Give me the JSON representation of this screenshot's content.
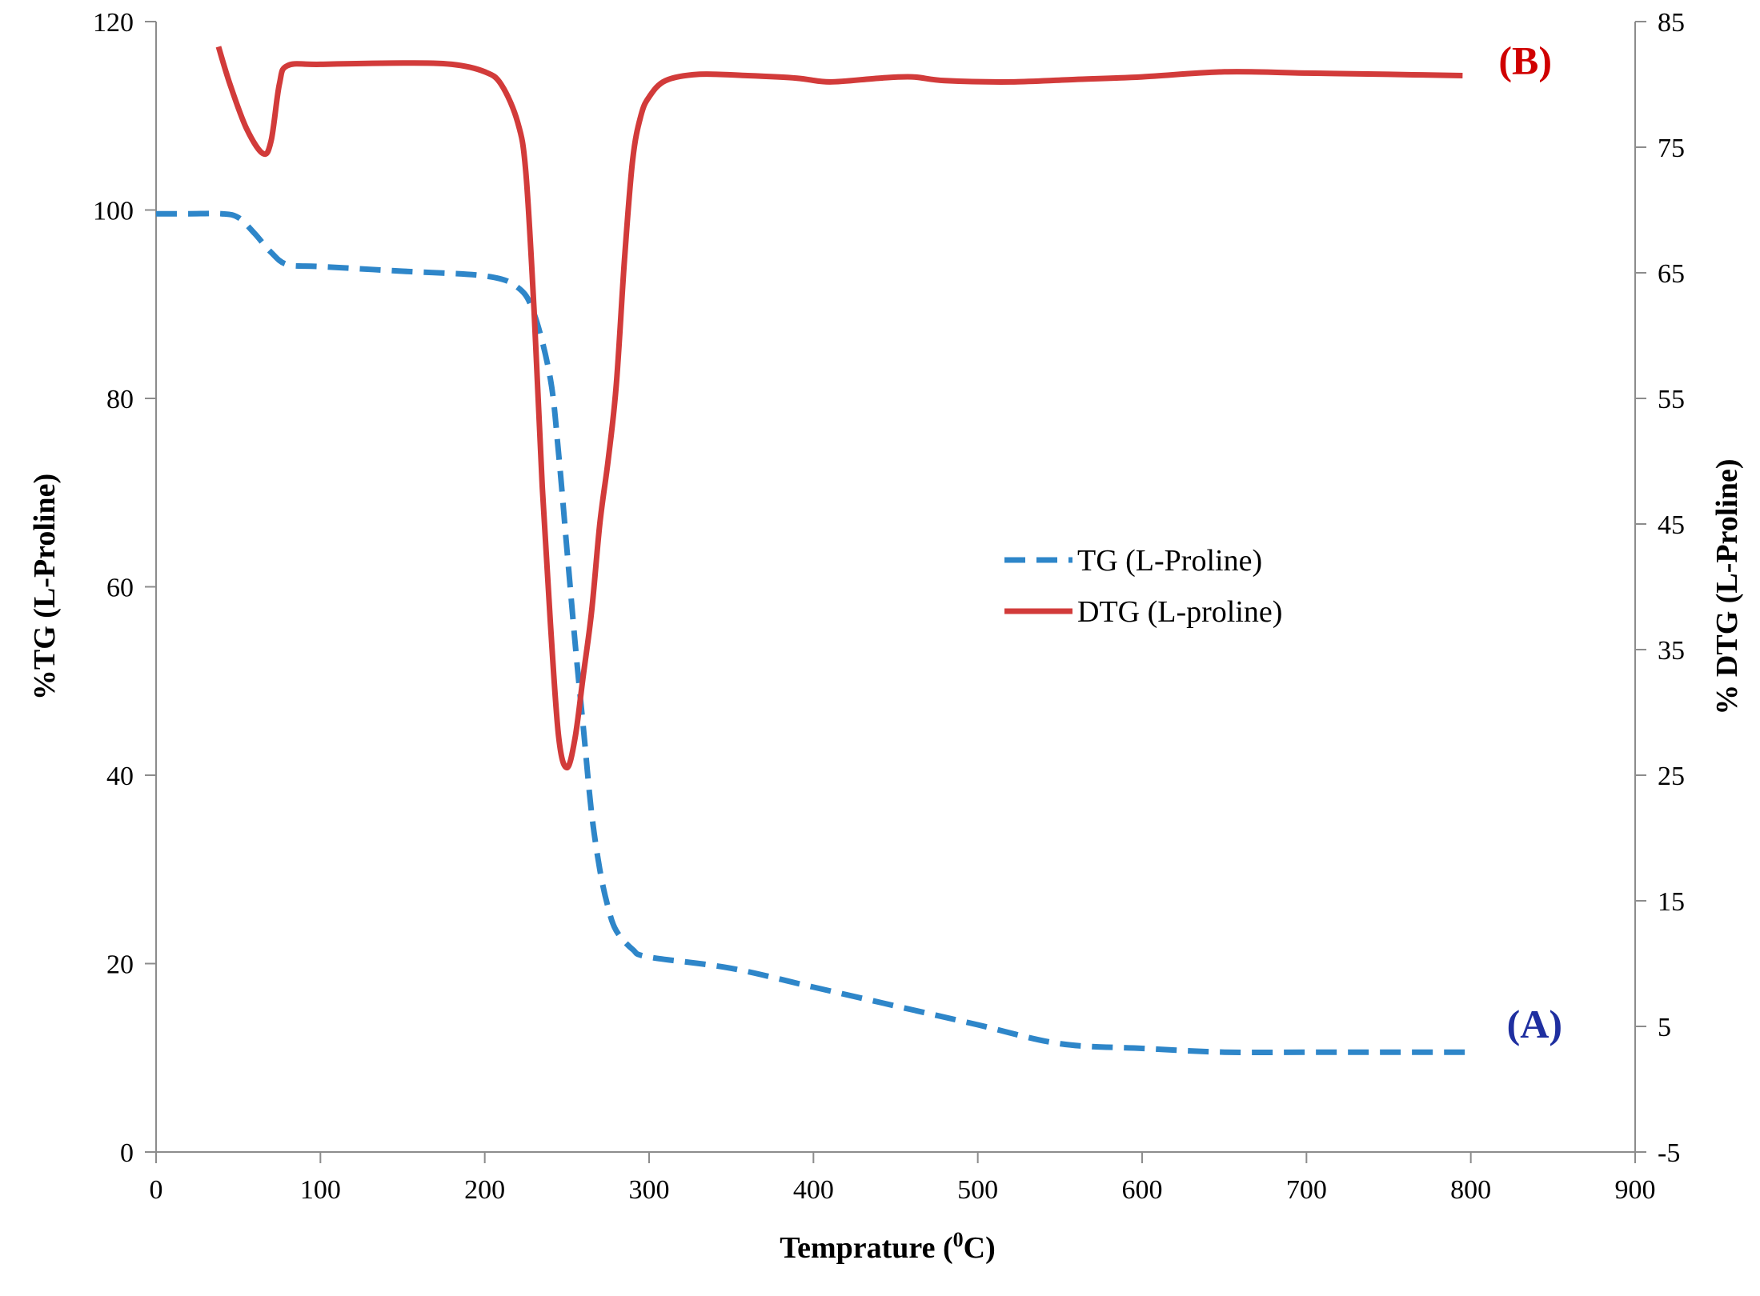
{
  "chart_data": {
    "type": "line",
    "title": "",
    "xlabel": "Temprature (",
    "xlabel_sup": "0",
    "xlabel_suffix": "C)",
    "ylabel_left": "%TG (L-Proline)",
    "ylabel_right": "% DTG (L-Proline)",
    "xlim": [
      0,
      900
    ],
    "ylim_left": [
      0,
      120
    ],
    "ylim_right": [
      -5,
      85
    ],
    "x_ticks": [
      "0",
      "100",
      "200",
      "300",
      "400",
      "500",
      "600",
      "700",
      "800",
      "900"
    ],
    "y_left_ticks": [
      "0",
      "20",
      "40",
      "60",
      "80",
      "100",
      "120"
    ],
    "y_right_ticks": [
      "-5",
      "5",
      "15",
      "25",
      "35",
      "45",
      "55",
      "65",
      "75",
      "85"
    ],
    "grid": false,
    "legend_position": "center-right",
    "series": [
      {
        "name": "TG (L-Proline)",
        "axis": "left",
        "style": "dashed",
        "color": "#2E86C9",
        "x": [
          0,
          20,
          40,
          50,
          60,
          70,
          80,
          100,
          150,
          200,
          220,
          230,
          240,
          245,
          250,
          255,
          260,
          265,
          270,
          275,
          280,
          290,
          300,
          350,
          400,
          450,
          500,
          550,
          600,
          650,
          700,
          750,
          800
        ],
        "y": [
          99.6,
          99.6,
          99.6,
          99.2,
          97.5,
          95.5,
          94.2,
          94.0,
          93.5,
          93.0,
          91.8,
          89.0,
          82.0,
          74.0,
          64.0,
          54.0,
          45.0,
          36.0,
          30.0,
          26.0,
          23.5,
          21.5,
          20.7,
          19.5,
          17.5,
          15.5,
          13.5,
          11.5,
          11.0,
          10.6,
          10.6,
          10.6,
          10.6
        ]
      },
      {
        "name": "DTG (L-proline)",
        "axis": "right",
        "style": "solid",
        "color": "#D23B3A",
        "x": [
          38,
          45,
          55,
          65,
          70,
          75,
          80,
          100,
          150,
          180,
          200,
          210,
          220,
          225,
          230,
          235,
          240,
          245,
          250,
          255,
          260,
          265,
          270,
          275,
          280,
          285,
          290,
          295,
          300,
          310,
          330,
          360,
          390,
          410,
          440,
          460,
          480,
          520,
          560,
          600,
          650,
          700,
          750,
          795
        ],
        "y": [
          83.0,
          80.0,
          76.5,
          74.5,
          75.5,
          80.0,
          81.5,
          81.6,
          81.7,
          81.6,
          81.0,
          80.0,
          77.0,
          73.0,
          62.0,
          48.0,
          37.0,
          28.0,
          25.6,
          28.0,
          33.0,
          38.0,
          45.0,
          50.0,
          56.0,
          66.0,
          74.0,
          77.5,
          79.0,
          80.3,
          80.8,
          80.7,
          80.5,
          80.2,
          80.5,
          80.6,
          80.3,
          80.2,
          80.4,
          80.6,
          81.0,
          80.9,
          80.8,
          80.7
        ]
      }
    ],
    "annotations": [
      {
        "text": "(A)",
        "color": "#1F2FA0",
        "series": "TG (L-Proline)"
      },
      {
        "text": "(B)",
        "color": "#D00000",
        "series": "DTG (L-proline)"
      }
    ]
  }
}
